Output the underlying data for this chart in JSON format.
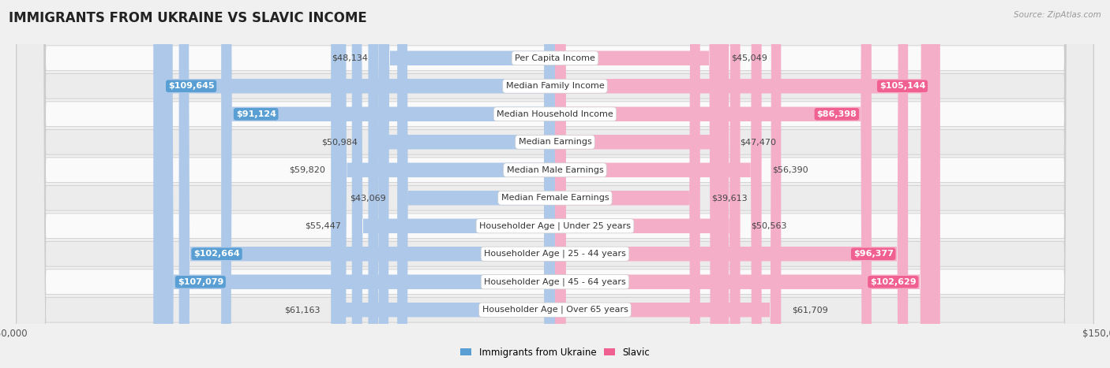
{
  "title": "IMMIGRANTS FROM UKRAINE VS SLAVIC INCOME",
  "source": "Source: ZipAtlas.com",
  "categories": [
    "Per Capita Income",
    "Median Family Income",
    "Median Household Income",
    "Median Earnings",
    "Median Male Earnings",
    "Median Female Earnings",
    "Householder Age | Under 25 years",
    "Householder Age | 25 - 44 years",
    "Householder Age | 45 - 64 years",
    "Householder Age | Over 65 years"
  ],
  "ukraine_values": [
    48134,
    109645,
    91124,
    50984,
    59820,
    43069,
    55447,
    102664,
    107079,
    61163
  ],
  "slavic_values": [
    45049,
    105144,
    86398,
    47470,
    56390,
    39613,
    50563,
    96377,
    102629,
    61709
  ],
  "ukraine_labels": [
    "$48,134",
    "$109,645",
    "$91,124",
    "$50,984",
    "$59,820",
    "$43,069",
    "$55,447",
    "$102,664",
    "$107,079",
    "$61,163"
  ],
  "slavic_labels": [
    "$45,049",
    "$105,144",
    "$86,398",
    "$47,470",
    "$56,390",
    "$39,613",
    "$50,563",
    "$96,377",
    "$102,629",
    "$61,709"
  ],
  "ukraine_bar_color": "#adc8e8",
  "ukraine_label_color": "#5a9fd4",
  "slavic_bar_color": "#f5aec8",
  "slavic_label_color": "#f06090",
  "large_threshold": 65000,
  "bar_height": 0.52,
  "max_value": 150000,
  "bg_color": "#f0f0f0",
  "row_bg_light": "#fafafa",
  "row_bg_dark": "#ececec",
  "title_fontsize": 12,
  "label_fontsize": 8,
  "category_fontsize": 8,
  "axis_fontsize": 8.5
}
